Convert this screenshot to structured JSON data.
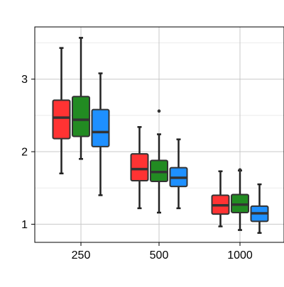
{
  "chart_data": {
    "type": "box",
    "categories": [
      "250",
      "500",
      "1000"
    ],
    "yticks": [
      1,
      2,
      3
    ],
    "ylim": [
      0.75,
      3.72
    ],
    "grid": true,
    "series": [
      {
        "color": "#FF3333",
        "boxes": [
          {
            "min": 1.7,
            "q1": 2.18,
            "median": 2.47,
            "q3": 2.71,
            "max": 3.43,
            "outliers": []
          },
          {
            "min": 1.22,
            "q1": 1.6,
            "median": 1.76,
            "q3": 1.97,
            "max": 2.34,
            "outliers": []
          },
          {
            "min": 0.97,
            "q1": 1.14,
            "median": 1.26,
            "q3": 1.4,
            "max": 1.73,
            "outliers": []
          }
        ]
      },
      {
        "color": "#228B22",
        "boxes": [
          {
            "min": 1.9,
            "q1": 2.21,
            "median": 2.44,
            "q3": 2.76,
            "max": 3.57,
            "outliers": []
          },
          {
            "min": 1.16,
            "q1": 1.59,
            "median": 1.72,
            "q3": 1.88,
            "max": 2.24,
            "outliers": [
              2.56
            ]
          },
          {
            "min": 0.92,
            "q1": 1.16,
            "median": 1.27,
            "q3": 1.41,
            "max": 1.74,
            "outliers": [
              1.75
            ]
          }
        ]
      },
      {
        "color": "#1E90FF",
        "boxes": [
          {
            "min": 1.4,
            "q1": 2.07,
            "median": 2.27,
            "q3": 2.58,
            "max": 3.08,
            "outliers": []
          },
          {
            "min": 1.22,
            "q1": 1.52,
            "median": 1.64,
            "q3": 1.78,
            "max": 2.17,
            "outliers": []
          },
          {
            "min": 0.88,
            "q1": 1.04,
            "median": 1.15,
            "q3": 1.25,
            "max": 1.55,
            "outliers": []
          }
        ]
      }
    ]
  }
}
